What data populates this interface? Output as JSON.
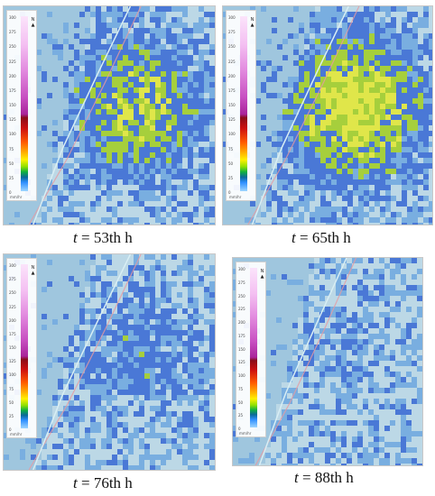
{
  "panels": [
    {
      "time_var": "t",
      "time_text": " = 53th h",
      "intensity": 0.75,
      "seed": 11
    },
    {
      "time_var": "t",
      "time_text": " = 65th h",
      "intensity": 1.0,
      "seed": 23
    },
    {
      "time_var": "t",
      "time_text": " = 76th h",
      "intensity": 0.35,
      "seed": 37
    },
    {
      "time_var": "t",
      "time_text": " = 88th h",
      "intensity": 0.15,
      "seed": 51
    }
  ],
  "legend": {
    "ticks": [
      "300",
      "275",
      "250",
      "225",
      "200",
      "175",
      "150",
      "125",
      "100",
      "75",
      "50",
      "25",
      "0"
    ],
    "unit": "mm/hr",
    "north_label": "N",
    "north_icon": "north-arrow-icon"
  },
  "colors": {
    "sea": "#9fc6de",
    "land": "#bcd8e6",
    "rain_light": "#79aee0",
    "rain_mid": "#4a78d6",
    "rain_high": "#a6cf3c",
    "rain_peak": "#e0e64a",
    "road": "#e79aa0"
  }
}
